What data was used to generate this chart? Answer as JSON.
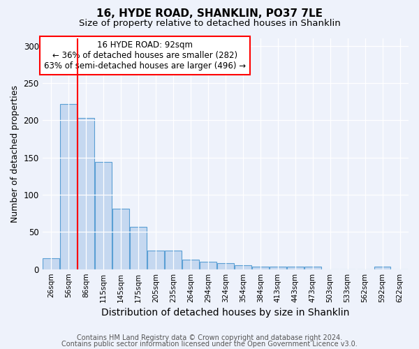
{
  "title": "16, HYDE ROAD, SHANKLIN, PO37 7LE",
  "subtitle": "Size of property relative to detached houses in Shanklin",
  "xlabel": "Distribution of detached houses by size in Shanklin",
  "ylabel": "Number of detached properties",
  "bin_labels": [
    "26sqm",
    "56sqm",
    "86sqm",
    "115sqm",
    "145sqm",
    "175sqm",
    "205sqm",
    "235sqm",
    "264sqm",
    "294sqm",
    "324sqm",
    "354sqm",
    "384sqm",
    "413sqm",
    "443sqm",
    "473sqm",
    "503sqm",
    "533sqm",
    "562sqm",
    "592sqm",
    "622sqm"
  ],
  "bar_heights": [
    15,
    222,
    203,
    144,
    81,
    57,
    25,
    25,
    13,
    10,
    8,
    5,
    3,
    3,
    3,
    3,
    0,
    0,
    0,
    3,
    0
  ],
  "bar_color": "#c5d8f0",
  "bar_edge_color": "#5a9fd4",
  "red_line_x": 1.52,
  "annotation_title": "16 HYDE ROAD: 92sqm",
  "annotation_line1": "← 36% of detached houses are smaller (282)",
  "annotation_line2": "63% of semi-detached houses are larger (496) →",
  "ylim": [
    0,
    310
  ],
  "yticks": [
    0,
    50,
    100,
    150,
    200,
    250,
    300
  ],
  "footer_line1": "Contains HM Land Registry data © Crown copyright and database right 2024.",
  "footer_line2": "Contains public sector information licensed under the Open Government Licence v3.0.",
  "background_color": "#eef2fb",
  "plot_bg_color": "#eef2fb",
  "title_fontsize": 11,
  "subtitle_fontsize": 9.5,
  "axis_label_fontsize": 9,
  "tick_fontsize": 7.5,
  "annotation_fontsize": 8.5,
  "footer_fontsize": 7
}
